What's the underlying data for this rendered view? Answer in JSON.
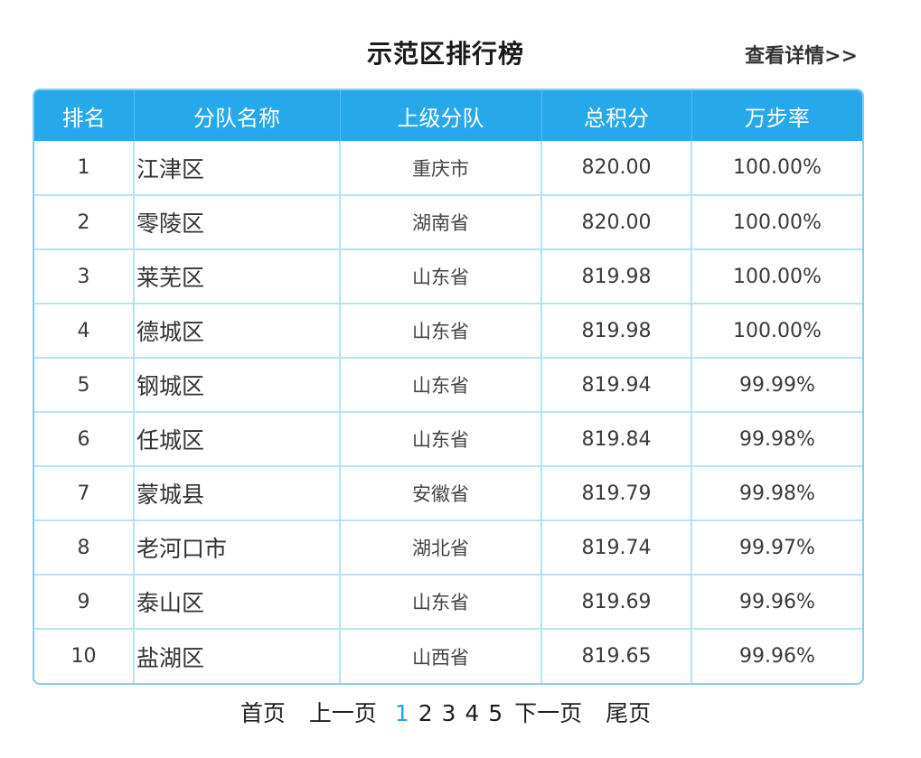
{
  "header": {
    "title": "示范区排行榜",
    "detail_link": "查看详情>>"
  },
  "table": {
    "columns": [
      "排名",
      "分队名称",
      "上级分队",
      "总积分",
      "万步率"
    ],
    "rows": [
      {
        "rank": "1",
        "name": "江津区",
        "parent": "重庆市",
        "score": "820.00",
        "rate": "100.00%"
      },
      {
        "rank": "2",
        "name": "零陵区",
        "parent": "湖南省",
        "score": "820.00",
        "rate": "100.00%"
      },
      {
        "rank": "3",
        "name": "莱芜区",
        "parent": "山东省",
        "score": "819.98",
        "rate": "100.00%"
      },
      {
        "rank": "4",
        "name": "德城区",
        "parent": "山东省",
        "score": "819.98",
        "rate": "100.00%"
      },
      {
        "rank": "5",
        "name": "钢城区",
        "parent": "山东省",
        "score": "819.94",
        "rate": "99.99%"
      },
      {
        "rank": "6",
        "name": "任城区",
        "parent": "山东省",
        "score": "819.84",
        "rate": "99.98%"
      },
      {
        "rank": "7",
        "name": "蒙城县",
        "parent": "安徽省",
        "score": "819.79",
        "rate": "99.98%"
      },
      {
        "rank": "8",
        "name": "老河口市",
        "parent": "湖北省",
        "score": "819.74",
        "rate": "99.97%"
      },
      {
        "rank": "9",
        "name": "泰山区",
        "parent": "山东省",
        "score": "819.69",
        "rate": "99.96%"
      },
      {
        "rank": "10",
        "name": "盐湖区",
        "parent": "山西省",
        "score": "819.65",
        "rate": "99.96%"
      }
    ]
  },
  "pagination": {
    "first": "首页",
    "prev": "上一页",
    "pages": [
      "1",
      "2",
      "3",
      "4",
      "5"
    ],
    "current": "1",
    "next": "下一页",
    "last": "尾页",
    "active_color": "#2aa3e6"
  },
  "colors": {
    "header_bg": "#27a8ea",
    "grid_line": "#b7e2f6"
  }
}
